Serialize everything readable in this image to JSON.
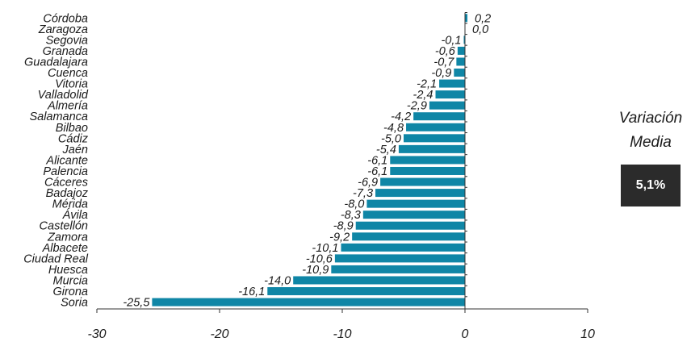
{
  "chart_data": {
    "type": "bar",
    "orientation": "horizontal",
    "categories": [
      "Córdoba",
      "Zaragoza",
      "Segovia",
      "Granada",
      "Guadalajara",
      "Cuenca",
      "Vitoria",
      "Valladolid",
      "Almería",
      "Salamanca",
      "Bilbao",
      "Cádiz",
      "Jaén",
      "Alicante",
      "Palencia",
      "Cáceres",
      "Badajoz",
      "Mérida",
      "Ávila",
      "Castellón",
      "Zamora",
      "Albacete",
      "Ciudad Real",
      "Huesca",
      "Murcia",
      "Girona",
      "Soria"
    ],
    "values": [
      0.2,
      0.0,
      -0.1,
      -0.6,
      -0.7,
      -0.9,
      -2.1,
      -2.4,
      -2.9,
      -4.2,
      -4.8,
      -5.0,
      -5.4,
      -6.1,
      -6.1,
      -6.9,
      -7.3,
      -8.0,
      -8.3,
      -8.9,
      -9.2,
      -10.1,
      -10.6,
      -10.9,
      -14.0,
      -16.1,
      -25.5
    ],
    "value_labels": [
      "0,2",
      "0,0",
      "-0,1",
      "-0,6",
      "-0,7",
      "-0,9",
      "-2,1",
      "-2,4",
      "-2,9",
      "-4,2",
      "-4,8",
      "-5,0",
      "-5,4",
      "-6,1",
      "-6,1",
      "-6,9",
      "-7,3",
      "-8,0",
      "-8,3",
      "-8,9",
      "-9,2",
      "-10,1",
      "-10,6",
      "-10,9",
      "-14,0",
      "-16,1",
      "-25,5"
    ],
    "xlim": [
      -30,
      10
    ],
    "xticks": [
      -30,
      -20,
      -10,
      0,
      10
    ],
    "xtick_labels": [
      "-30",
      "-20",
      "-10",
      "0",
      "10"
    ],
    "grid": false,
    "bar_color": "#0f86a6",
    "axis_color": "#333333"
  },
  "side_panel": {
    "caption": "Variación\nMedia",
    "value": "5,1%",
    "box_color": "#2b2b2b"
  }
}
